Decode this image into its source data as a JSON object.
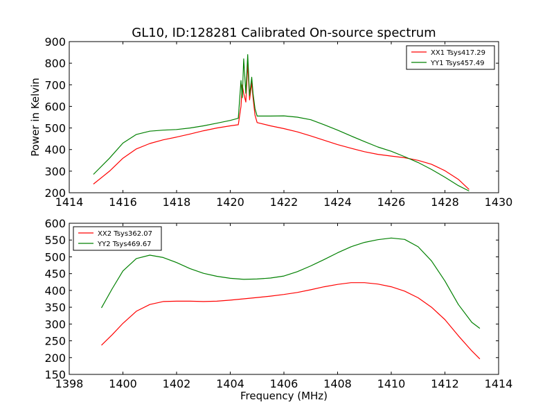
{
  "figure": {
    "title": "GL10, ID:128281 Calibrated On-source spectrum"
  },
  "chart_data": [
    {
      "type": "line",
      "title": "GL10, ID:128281 Calibrated On-source spectrum",
      "xlabel": "",
      "ylabel": "Power in Kelvin",
      "xlim": [
        1414,
        1430
      ],
      "ylim": [
        200,
        900
      ],
      "xticks": [
        1414,
        1416,
        1418,
        1420,
        1422,
        1424,
        1426,
        1428,
        1430
      ],
      "yticks": [
        200,
        300,
        400,
        500,
        600,
        700,
        800,
        900
      ],
      "xtick_labels": [
        "1414",
        "1416",
        "1418",
        "1420",
        "1422",
        "1424",
        "1426",
        "1428",
        "1430"
      ],
      "ytick_labels": [
        "200",
        "300",
        "400",
        "500",
        "600",
        "700",
        "800",
        "900"
      ],
      "grid": false,
      "legend_position": "top-right",
      "series": [
        {
          "name": "XX1 Tsys417.29",
          "color": "#ff0000",
          "x": [
            1414.9,
            1415.5,
            1416.0,
            1416.5,
            1417.0,
            1417.5,
            1418.0,
            1418.5,
            1419.0,
            1419.5,
            1420.0,
            1420.3,
            1420.4,
            1420.45,
            1420.5,
            1420.58,
            1420.65,
            1420.72,
            1420.8,
            1420.85,
            1420.92,
            1421.0,
            1421.5,
            1422.0,
            1422.5,
            1423.0,
            1423.5,
            1424.0,
            1424.5,
            1425.0,
            1425.5,
            1426.0,
            1426.5,
            1427.0,
            1427.5,
            1428.0,
            1428.5,
            1428.9
          ],
          "y": [
            240,
            300,
            360,
            403,
            428,
            445,
            458,
            472,
            487,
            500,
            510,
            515,
            600,
            700,
            660,
            620,
            800,
            630,
            710,
            640,
            560,
            525,
            510,
            497,
            482,
            463,
            443,
            423,
            406,
            390,
            378,
            370,
            362,
            350,
            332,
            302,
            262,
            215
          ]
        },
        {
          "name": "YY1 Tsys457.49",
          "color": "#008000",
          "x": [
            1414.9,
            1415.5,
            1416.0,
            1416.5,
            1417.0,
            1417.5,
            1418.0,
            1418.5,
            1419.0,
            1419.5,
            1420.0,
            1420.3,
            1420.4,
            1420.45,
            1420.5,
            1420.58,
            1420.65,
            1420.72,
            1420.8,
            1420.85,
            1420.92,
            1421.0,
            1421.5,
            1422.0,
            1422.5,
            1423.0,
            1423.5,
            1424.0,
            1424.5,
            1425.0,
            1425.5,
            1426.0,
            1426.5,
            1427.0,
            1427.5,
            1428.0,
            1428.5,
            1428.9
          ],
          "y": [
            285,
            360,
            430,
            470,
            485,
            490,
            493,
            500,
            510,
            522,
            535,
            545,
            720,
            640,
            820,
            660,
            840,
            650,
            735,
            660,
            590,
            555,
            555,
            556,
            550,
            538,
            515,
            490,
            463,
            437,
            412,
            392,
            367,
            340,
            308,
            272,
            233,
            208
          ]
        }
      ]
    },
    {
      "type": "line",
      "title": "",
      "xlabel": "Frequency (MHz)",
      "ylabel": "",
      "xlim": [
        1398,
        1414
      ],
      "ylim": [
        150,
        600
      ],
      "xticks": [
        1398,
        1400,
        1402,
        1404,
        1406,
        1408,
        1410,
        1412,
        1414
      ],
      "yticks": [
        150,
        200,
        250,
        300,
        350,
        400,
        450,
        500,
        550,
        600
      ],
      "xtick_labels": [
        "1398",
        "1400",
        "1402",
        "1404",
        "1406",
        "1408",
        "1410",
        "1412",
        "1414"
      ],
      "ytick_labels": [
        "150",
        "200",
        "250",
        "300",
        "350",
        "400",
        "450",
        "500",
        "550",
        "600"
      ],
      "grid": false,
      "legend_position": "top-left",
      "series": [
        {
          "name": "XX2 Tsys362.07",
          "color": "#ff0000",
          "x": [
            1399.2,
            1399.6,
            1400.0,
            1400.5,
            1401.0,
            1401.5,
            1402.0,
            1402.5,
            1403.0,
            1403.5,
            1404.0,
            1404.5,
            1405.0,
            1405.5,
            1406.0,
            1406.5,
            1407.0,
            1407.5,
            1408.0,
            1408.5,
            1409.0,
            1409.5,
            1410.0,
            1410.5,
            1411.0,
            1411.5,
            1412.0,
            1412.5,
            1413.0,
            1413.3
          ],
          "y": [
            237,
            268,
            302,
            338,
            358,
            367,
            368,
            368,
            367,
            368,
            371,
            375,
            379,
            383,
            388,
            394,
            402,
            411,
            418,
            423,
            423,
            419,
            411,
            398,
            378,
            350,
            313,
            265,
            220,
            196
          ]
        },
        {
          "name": "YY2 Tsys469.67",
          "color": "#008000",
          "x": [
            1399.2,
            1399.6,
            1400.0,
            1400.5,
            1401.0,
            1401.5,
            1402.0,
            1402.5,
            1403.0,
            1403.5,
            1404.0,
            1404.5,
            1405.0,
            1405.5,
            1406.0,
            1406.5,
            1407.0,
            1407.5,
            1408.0,
            1408.5,
            1409.0,
            1409.5,
            1410.0,
            1410.5,
            1411.0,
            1411.5,
            1412.0,
            1412.5,
            1413.0,
            1413.3
          ],
          "y": [
            348,
            405,
            458,
            495,
            505,
            498,
            483,
            465,
            451,
            442,
            436,
            433,
            434,
            437,
            443,
            456,
            473,
            492,
            512,
            530,
            543,
            551,
            556,
            552,
            530,
            488,
            428,
            358,
            305,
            287
          ]
        }
      ]
    }
  ]
}
